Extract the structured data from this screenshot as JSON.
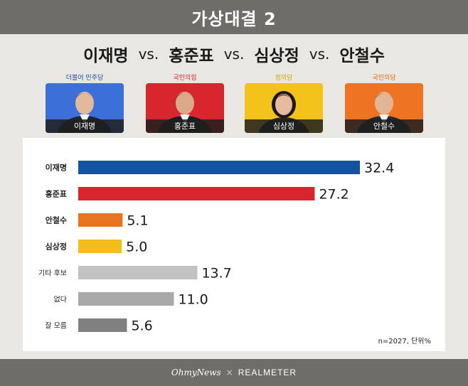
{
  "title": "가상대결 2",
  "matchup": {
    "names": [
      "이재명",
      "홍준표",
      "심상정",
      "안철수"
    ],
    "vs": "vs."
  },
  "candidates": [
    {
      "name": "이재명",
      "party": "더불어 민주당",
      "party_color": "#1e4fa3",
      "photo_bg": "#3d6fd8"
    },
    {
      "name": "홍준표",
      "party": "국민의힘",
      "party_color": "#d8262f",
      "photo_bg": "#d8262f"
    },
    {
      "name": "심상정",
      "party": "정의당",
      "party_color": "#d6a300",
      "photo_bg": "#f3c21b"
    },
    {
      "name": "안철수",
      "party": "국민의당",
      "party_color": "#e06a12",
      "photo_bg": "#ee7424"
    }
  ],
  "chart_data": {
    "type": "bar",
    "orientation": "horizontal",
    "categories": [
      "이재명",
      "홍준표",
      "안철수",
      "심상정",
      "기타 후보",
      "없다",
      "잘 모름"
    ],
    "values": [
      32.4,
      27.2,
      5.1,
      5.0,
      13.7,
      11.0,
      5.6
    ],
    "value_labels": [
      "32.4",
      "27.2",
      "5.1",
      "5.0",
      "13.7",
      "11.0",
      "5.6"
    ],
    "colors": [
      "#1552a0",
      "#d8262f",
      "#e77421",
      "#f3be1c",
      "#c2c2c2",
      "#a8a8a8",
      "#808080"
    ],
    "xlim": [
      0,
      32.4
    ],
    "grid": false
  },
  "note": "n=2027, 단위%",
  "footer": {
    "left": "OhmyNews",
    "sep": "×",
    "right": "REALMETER"
  }
}
